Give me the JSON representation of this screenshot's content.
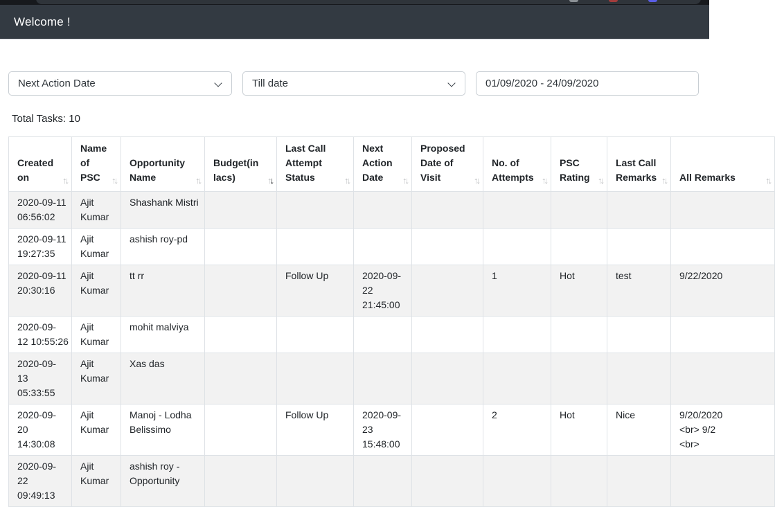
{
  "colors": {
    "header_bg": "#333a42",
    "table_stripe": "#f2f2f2",
    "table_border": "#dee2e6",
    "extension_icon_red": "#a23c3c",
    "extension_icon_blue": "#5a5ee6",
    "extension_icon_gray": "#8b9095"
  },
  "header": {
    "title": "Welcome !"
  },
  "filters": {
    "field_select": {
      "value": "Next Action Date"
    },
    "range_select": {
      "value": "Till date"
    },
    "date_range_input": {
      "value": "01/09/2020 - 24/09/2020"
    }
  },
  "summary": {
    "total_tasks": "Total Tasks: 10"
  },
  "table": {
    "columns": [
      {
        "key": "created-on",
        "label": "Created\non",
        "sortable": true,
        "sort_state": "none"
      },
      {
        "key": "name-of-psc",
        "label": "Name\nof\nPSC",
        "sortable": true,
        "sort_state": "none"
      },
      {
        "key": "opportunity-name",
        "label": "Opportunity\nName",
        "sortable": true,
        "sort_state": "none"
      },
      {
        "key": "budget-in-lacs",
        "label": "Budget(in\nlacs)",
        "sortable": true,
        "sort_state": "desc"
      },
      {
        "key": "last-call-attempt-status",
        "label": "Last Call\nAttempt\nStatus",
        "sortable": true,
        "sort_state": "none"
      },
      {
        "key": "next-action-date",
        "label": "Next\nAction\nDate",
        "sortable": true,
        "sort_state": "none"
      },
      {
        "key": "proposed-date-of-visit",
        "label": "Proposed\nDate of\nVisit",
        "sortable": true,
        "sort_state": "none"
      },
      {
        "key": "no-of-attempts",
        "label": "No. of\nAttempts",
        "sortable": true,
        "sort_state": "none"
      },
      {
        "key": "psc-rating",
        "label": "PSC\nRating",
        "sortable": true,
        "sort_state": "none"
      },
      {
        "key": "last-call-remarks",
        "label": "Last Call\nRemarks",
        "sortable": true,
        "sort_state": "none"
      },
      {
        "key": "all-remarks",
        "label": "All Remarks",
        "sortable": true,
        "sort_state": "none"
      }
    ],
    "rows": [
      [
        "2020-09-11\n06:56:02",
        "Ajit\nKumar",
        "Shashank Mistri",
        "",
        "",
        "",
        "",
        "",
        "",
        "",
        ""
      ],
      [
        "2020-09-11\n19:27:35",
        "Ajit\nKumar",
        "ashish roy-pd",
        "",
        "",
        "",
        "",
        "",
        "",
        "",
        ""
      ],
      [
        "2020-09-11\n20:30:16",
        "Ajit\nKumar",
        "tt rr",
        "",
        "Follow Up",
        "2020-09-\n22\n21:45:00",
        "",
        "1",
        "Hot",
        "test",
        "9/22/2020"
      ],
      [
        "2020-09-\n12 10:55:26",
        "Ajit\nKumar",
        "mohit malviya",
        "",
        "",
        "",
        "",
        "",
        "",
        "",
        ""
      ],
      [
        "2020-09-\n13\n05:33:55",
        "Ajit\nKumar",
        "Xas das",
        "",
        "",
        "",
        "",
        "",
        "",
        "",
        ""
      ],
      [
        "2020-09-\n20\n14:30:08",
        "Ajit\nKumar",
        "Manoj - Lodha\nBelissimo",
        "",
        "Follow Up",
        "2020-09-\n23\n15:48:00",
        "",
        "2",
        "Hot",
        "Nice",
        "9/20/2020\n<br> 9/2\n<br>"
      ],
      [
        "2020-09-\n22\n09:49:13",
        "Ajit\nKumar",
        "ashish roy -\nOpportunity",
        "",
        "",
        "",
        "",
        "",
        "",
        "",
        ""
      ]
    ]
  }
}
